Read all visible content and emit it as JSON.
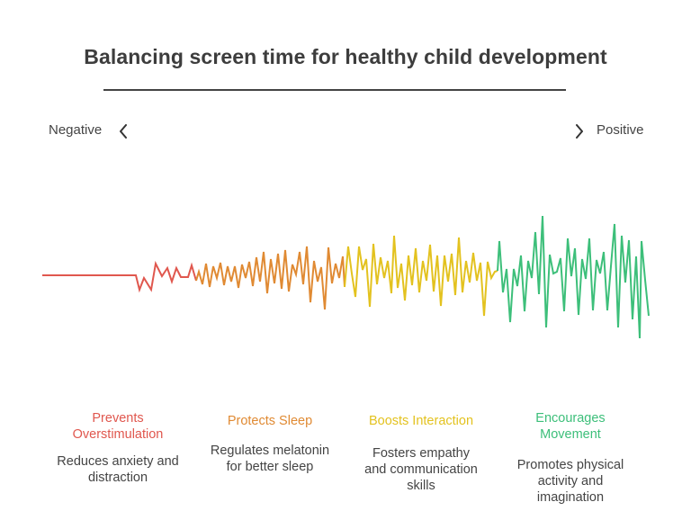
{
  "title": "Balancing screen time for healthy child development",
  "axis": {
    "negative_label": "Negative",
    "positive_label": "Positive"
  },
  "colors": {
    "red": "#e0574e",
    "orange": "#e08a33",
    "yellow": "#e3c21f",
    "green": "#3dbf7a"
  },
  "sections": [
    {
      "heading_line1": "Prevents",
      "heading_line2": "Overstimulation",
      "desc_line1": "Reduces anxiety and",
      "desc_line2": "distraction",
      "desc_line3": "",
      "color": "#e0574e"
    },
    {
      "heading_line1": "Protects Sleep",
      "heading_line2": "",
      "desc_line1": "Regulates melatonin",
      "desc_line2": "for better sleep",
      "desc_line3": "",
      "color": "#e08a33"
    },
    {
      "heading_line1": "Boosts Interaction",
      "heading_line2": "",
      "desc_line1": "Fosters empathy",
      "desc_line2": "and communication",
      "desc_line3": "skills",
      "color": "#e3c21f"
    },
    {
      "heading_line1": "Encourages",
      "heading_line2": "Movement",
      "desc_line1": "Promotes physical",
      "desc_line2": "activity and",
      "desc_line3": "imagination",
      "color": "#3dbf7a"
    }
  ]
}
